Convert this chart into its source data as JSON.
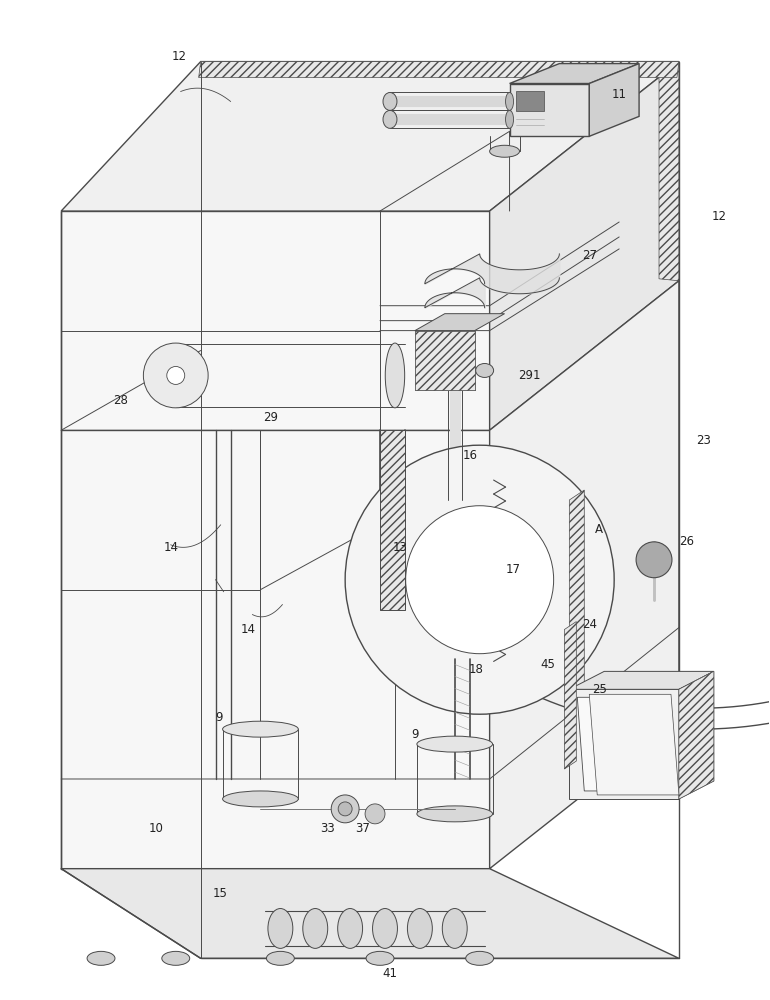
{
  "background_color": "#ffffff",
  "line_color": "#4a4a4a",
  "fig_width": 7.7,
  "fig_height": 10.0,
  "hatch_pattern": "////",
  "lw_main": 1.0,
  "lw_thin": 0.7,
  "lw_thick": 1.5,
  "label_fontsize": 8.5,
  "label_color": "#222222",
  "component_fill": "#f2f2f2",
  "shadow_fill": "#e4e4e4",
  "dark_fill": "#d0d0d0",
  "hatch_fill": "#e8e8e8"
}
